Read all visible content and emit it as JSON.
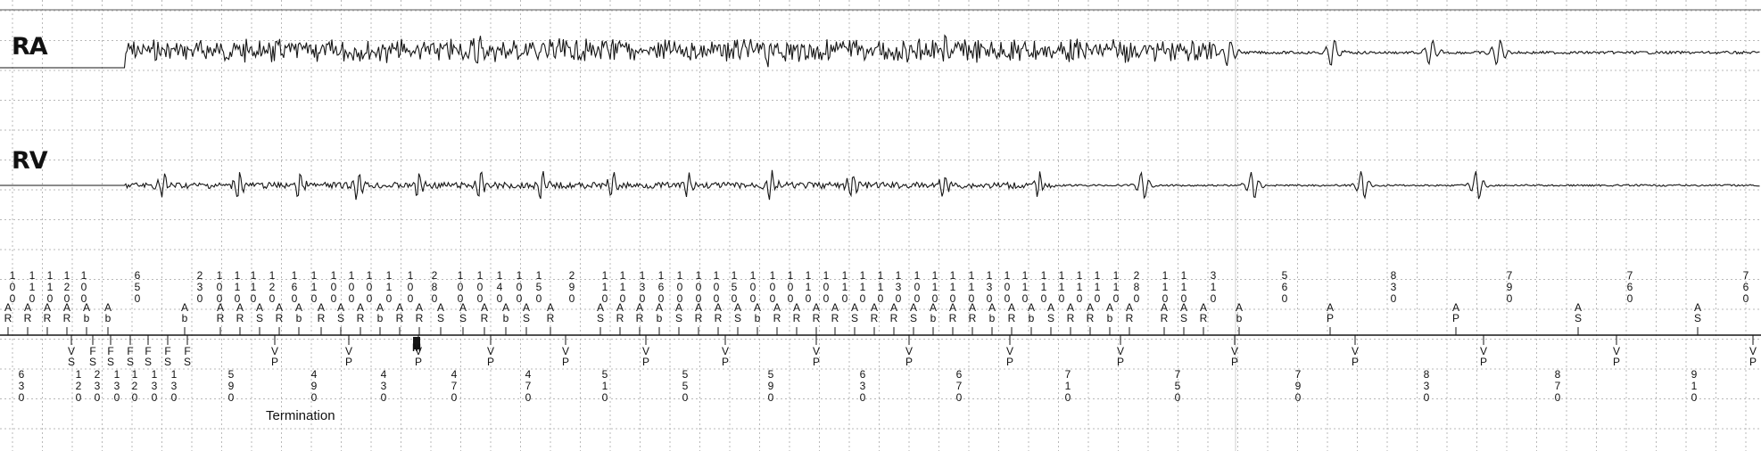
{
  "leads": {
    "ra": "RA",
    "rv": "RV"
  },
  "caption": "Termination",
  "colors": {
    "grid": "#b9b9b9",
    "trace": "#161616",
    "text": "#111111"
  },
  "beats": {
    "ra_tachy_spikes": [
      17.5,
      31.5,
      36.2,
      40.3,
      50.8,
      61.1,
      62.4
    ],
    "ra_sinus_beats": [
      74.1,
      81.3,
      88.2,
      94.7,
      99.2
    ],
    "rv_conducted_beats": [
      10.6,
      15.6,
      19.6,
      23.5,
      27.5,
      31.6,
      35.7,
      40.4,
      45.4,
      50.9,
      56.3,
      62.4,
      68.7
    ],
    "rv_sinus_beats": [
      69.0,
      75.6,
      82.9,
      90.2,
      97.8
    ]
  },
  "marker_channel": {
    "top_values": [
      {
        "t": 0.6,
        "v": "100"
      },
      {
        "t": 1.9,
        "v": "110"
      },
      {
        "t": 3.1,
        "v": "110"
      },
      {
        "t": 4.2,
        "v": "120"
      },
      {
        "t": 5.3,
        "v": "100"
      },
      {
        "t": 8.9,
        "v": "650"
      },
      {
        "t": 13.0,
        "v": "230"
      },
      {
        "t": 14.3,
        "v": "100"
      },
      {
        "t": 15.5,
        "v": "110"
      },
      {
        "t": 16.6,
        "v": "110"
      },
      {
        "t": 17.8,
        "v": "120"
      },
      {
        "t": 19.3,
        "v": "160"
      },
      {
        "t": 20.6,
        "v": "110"
      },
      {
        "t": 21.9,
        "v": "100"
      },
      {
        "t": 23.1,
        "v": "100"
      },
      {
        "t": 24.3,
        "v": "100"
      },
      {
        "t": 25.6,
        "v": "110"
      },
      {
        "t": 27.0,
        "v": "100"
      },
      {
        "t": 28.6,
        "v": "280"
      },
      {
        "t": 30.3,
        "v": "100"
      },
      {
        "t": 31.6,
        "v": "100"
      },
      {
        "t": 32.9,
        "v": "140"
      },
      {
        "t": 34.2,
        "v": "100"
      },
      {
        "t": 35.5,
        "v": "150"
      },
      {
        "t": 37.7,
        "v": "290"
      },
      {
        "t": 39.9,
        "v": "110"
      },
      {
        "t": 41.1,
        "v": "110"
      },
      {
        "t": 42.4,
        "v": "130"
      },
      {
        "t": 43.6,
        "v": "160"
      },
      {
        "t": 44.9,
        "v": "100"
      },
      {
        "t": 46.1,
        "v": "100"
      },
      {
        "t": 47.3,
        "v": "100"
      },
      {
        "t": 48.5,
        "v": "150"
      },
      {
        "t": 49.7,
        "v": "100"
      },
      {
        "t": 51.0,
        "v": "100"
      },
      {
        "t": 52.2,
        "v": "100"
      },
      {
        "t": 53.4,
        "v": "110"
      },
      {
        "t": 54.6,
        "v": "100"
      },
      {
        "t": 55.8,
        "v": "110"
      },
      {
        "t": 57.0,
        "v": "110"
      },
      {
        "t": 58.2,
        "v": "110"
      },
      {
        "t": 59.4,
        "v": "130"
      },
      {
        "t": 60.6,
        "v": "100"
      },
      {
        "t": 61.8,
        "v": "110"
      },
      {
        "t": 63.0,
        "v": "110"
      },
      {
        "t": 64.2,
        "v": "110"
      },
      {
        "t": 65.4,
        "v": "130"
      },
      {
        "t": 66.6,
        "v": "100"
      },
      {
        "t": 67.8,
        "v": "110"
      },
      {
        "t": 69.0,
        "v": "110"
      },
      {
        "t": 70.2,
        "v": "110"
      },
      {
        "t": 71.4,
        "v": "110"
      },
      {
        "t": 72.6,
        "v": "110"
      },
      {
        "t": 73.8,
        "v": "110"
      },
      {
        "t": 75.2,
        "v": "280"
      },
      {
        "t": 77.1,
        "v": "110"
      },
      {
        "t": 78.3,
        "v": "110"
      },
      {
        "t": 80.3,
        "v": "310"
      },
      {
        "t": 85.0,
        "v": "560"
      },
      {
        "t": 92.2,
        "v": "830"
      },
      {
        "t": 99.9,
        "v": "790"
      },
      {
        "t": 107.9,
        "v": "760"
      },
      {
        "t": 115.6,
        "v": "760"
      }
    ],
    "atrial_marks": [
      {
        "t": 0.3,
        "v": "AR"
      },
      {
        "t": 1.6,
        "v": "AR"
      },
      {
        "t": 2.9,
        "v": "AR"
      },
      {
        "t": 4.2,
        "v": "AR"
      },
      {
        "t": 5.5,
        "v": "Ab"
      },
      {
        "t": 6.9,
        "v": "Ab"
      },
      {
        "t": 12.0,
        "v": "Ab"
      },
      {
        "t": 14.4,
        "v": "AR"
      },
      {
        "t": 15.7,
        "v": "AR"
      },
      {
        "t": 17.0,
        "v": "AS"
      },
      {
        "t": 18.3,
        "v": "AR"
      },
      {
        "t": 19.6,
        "v": "Ab"
      },
      {
        "t": 21.1,
        "v": "AR"
      },
      {
        "t": 22.4,
        "v": "AS"
      },
      {
        "t": 23.7,
        "v": "AR"
      },
      {
        "t": 25.0,
        "v": "Ab"
      },
      {
        "t": 26.3,
        "v": "AR"
      },
      {
        "t": 27.6,
        "v": "AR"
      },
      {
        "t": 29.0,
        "v": "AS"
      },
      {
        "t": 30.5,
        "v": "AS"
      },
      {
        "t": 31.9,
        "v": "AR"
      },
      {
        "t": 33.3,
        "v": "Ab"
      },
      {
        "t": 34.7,
        "v": "AS"
      },
      {
        "t": 36.3,
        "v": "AR"
      },
      {
        "t": 39.6,
        "v": "AS"
      },
      {
        "t": 40.9,
        "v": "AR"
      },
      {
        "t": 42.2,
        "v": "AR"
      },
      {
        "t": 43.5,
        "v": "Ab"
      },
      {
        "t": 44.8,
        "v": "AS"
      },
      {
        "t": 46.1,
        "v": "AR"
      },
      {
        "t": 47.4,
        "v": "AR"
      },
      {
        "t": 48.7,
        "v": "AS"
      },
      {
        "t": 50.0,
        "v": "Ab"
      },
      {
        "t": 51.3,
        "v": "AR"
      },
      {
        "t": 52.6,
        "v": "AR"
      },
      {
        "t": 53.9,
        "v": "AR"
      },
      {
        "t": 55.2,
        "v": "AR"
      },
      {
        "t": 56.5,
        "v": "AS"
      },
      {
        "t": 57.8,
        "v": "AR"
      },
      {
        "t": 59.1,
        "v": "AR"
      },
      {
        "t": 60.4,
        "v": "AS"
      },
      {
        "t": 61.7,
        "v": "Ab"
      },
      {
        "t": 63.0,
        "v": "AR"
      },
      {
        "t": 64.3,
        "v": "AR"
      },
      {
        "t": 65.6,
        "v": "Ab"
      },
      {
        "t": 66.9,
        "v": "AR"
      },
      {
        "t": 68.2,
        "v": "Ab"
      },
      {
        "t": 69.5,
        "v": "AS"
      },
      {
        "t": 70.8,
        "v": "AR"
      },
      {
        "t": 72.1,
        "v": "AR"
      },
      {
        "t": 73.4,
        "v": "Ab"
      },
      {
        "t": 74.7,
        "v": "AR"
      },
      {
        "t": 77.0,
        "v": "AR"
      },
      {
        "t": 78.3,
        "v": "AS"
      },
      {
        "t": 79.6,
        "v": "AR"
      },
      {
        "t": 82.0,
        "v": "Ab"
      },
      {
        "t": 88.0,
        "v": "AP"
      },
      {
        "t": 96.4,
        "v": "AP"
      },
      {
        "t": 104.5,
        "v": "AS"
      },
      {
        "t": 112.4,
        "v": "AS"
      }
    ],
    "ventricular_marks": [
      {
        "t": 4.5,
        "v": "VS"
      },
      {
        "t": 5.9,
        "v": "FS"
      },
      {
        "t": 7.1,
        "v": "FS"
      },
      {
        "t": 8.4,
        "v": "FS"
      },
      {
        "t": 9.6,
        "v": "FS"
      },
      {
        "t": 10.9,
        "v": "FS"
      },
      {
        "t": 12.2,
        "v": "FS"
      },
      {
        "t": 18.0,
        "v": "VP"
      },
      {
        "t": 22.9,
        "v": "VP"
      },
      {
        "t": 27.5,
        "v": "VP"
      },
      {
        "t": 32.3,
        "v": "VP"
      },
      {
        "t": 37.3,
        "v": "VP"
      },
      {
        "t": 42.6,
        "v": "VP"
      },
      {
        "t": 47.9,
        "v": "VP"
      },
      {
        "t": 53.9,
        "v": "VP"
      },
      {
        "t": 60.1,
        "v": "VP"
      },
      {
        "t": 66.8,
        "v": "VP"
      },
      {
        "t": 74.1,
        "v": "VP"
      },
      {
        "t": 81.7,
        "v": "VP"
      },
      {
        "t": 89.7,
        "v": "VP"
      },
      {
        "t": 98.2,
        "v": "VP"
      },
      {
        "t": 107.0,
        "v": "VP"
      },
      {
        "t": 116.1,
        "v": "VP"
      }
    ],
    "mode_switch_marker": {
      "t": 27.4,
      "v": "M"
    },
    "bottom_values": [
      {
        "t": 1.2,
        "v": "630"
      },
      {
        "t": 5.0,
        "v": "120"
      },
      {
        "t": 6.2,
        "v": "230"
      },
      {
        "t": 7.5,
        "v": "130"
      },
      {
        "t": 8.7,
        "v": "120"
      },
      {
        "t": 10.0,
        "v": "130"
      },
      {
        "t": 11.3,
        "v": "130"
      },
      {
        "t": 15.1,
        "v": "590"
      },
      {
        "t": 20.6,
        "v": "490"
      },
      {
        "t": 25.2,
        "v": "430"
      },
      {
        "t": 29.9,
        "v": "470"
      },
      {
        "t": 34.8,
        "v": "470"
      },
      {
        "t": 39.9,
        "v": "510"
      },
      {
        "t": 45.2,
        "v": "550"
      },
      {
        "t": 50.9,
        "v": "590"
      },
      {
        "t": 57.0,
        "v": "630"
      },
      {
        "t": 63.4,
        "v": "670"
      },
      {
        "t": 70.6,
        "v": "710"
      },
      {
        "t": 77.9,
        "v": "750"
      },
      {
        "t": 85.9,
        "v": "790"
      },
      {
        "t": 94.4,
        "v": "830"
      },
      {
        "t": 103.1,
        "v": "870"
      },
      {
        "t": 112.2,
        "v": "910"
      }
    ]
  }
}
